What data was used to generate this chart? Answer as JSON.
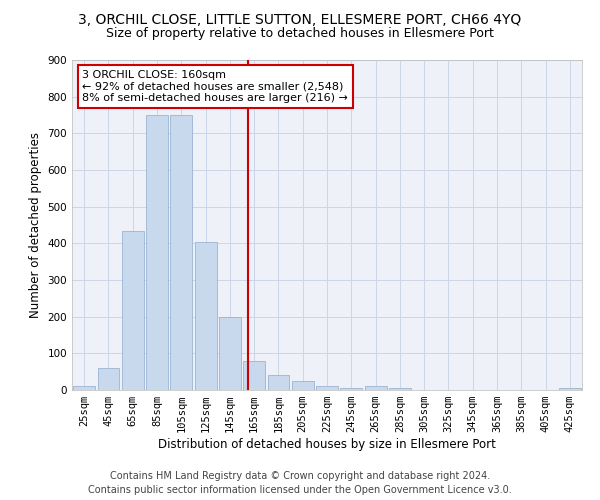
{
  "title": "3, ORCHIL CLOSE, LITTLE SUTTON, ELLESMERE PORT, CH66 4YQ",
  "subtitle": "Size of property relative to detached houses in Ellesmere Port",
  "xlabel": "Distribution of detached houses by size in Ellesmere Port",
  "ylabel": "Number of detached properties",
  "footer1": "Contains HM Land Registry data © Crown copyright and database right 2024.",
  "footer2": "Contains public sector information licensed under the Open Government Licence v3.0.",
  "annotation_line1": "3 ORCHIL CLOSE: 160sqm",
  "annotation_line2": "← 92% of detached houses are smaller (2,548)",
  "annotation_line3": "8% of semi-detached houses are larger (216) →",
  "categories": [
    "25sqm",
    "45sqm",
    "65sqm",
    "85sqm",
    "105sqm",
    "125sqm",
    "145sqm",
    "165sqm",
    "185sqm",
    "205sqm",
    "225sqm",
    "245sqm",
    "265sqm",
    "285sqm",
    "305sqm",
    "325sqm",
    "345sqm",
    "365sqm",
    "385sqm",
    "405sqm",
    "425sqm"
  ],
  "cat_centers": [
    25,
    45,
    65,
    85,
    105,
    125,
    145,
    165,
    185,
    205,
    225,
    245,
    265,
    285,
    305,
    325,
    345,
    365,
    385,
    405,
    425
  ],
  "values": [
    10,
    60,
    435,
    750,
    750,
    405,
    200,
    80,
    40,
    25,
    10,
    5,
    10,
    5,
    0,
    0,
    0,
    0,
    0,
    0,
    5
  ],
  "bar_color": "#c8d9ed",
  "bar_edgecolor": "#9ab4d4",
  "vline_x": 160,
  "vline_color": "#cc0000",
  "grid_color": "#ccd6e8",
  "bg_color": "#eef2f8",
  "ylim": [
    0,
    900
  ],
  "yticks": [
    0,
    100,
    200,
    300,
    400,
    500,
    600,
    700,
    800,
    900
  ],
  "annotation_box_edgecolor": "#cc0000",
  "title_fontsize": 10,
  "subtitle_fontsize": 9,
  "axis_label_fontsize": 8.5,
  "tick_fontsize": 7.5,
  "annotation_fontsize": 8,
  "footer_fontsize": 7
}
